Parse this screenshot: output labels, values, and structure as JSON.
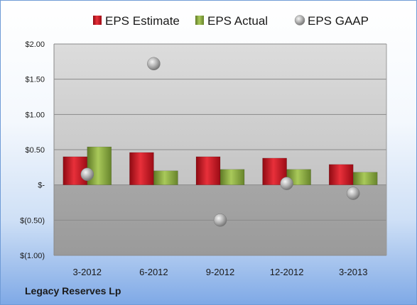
{
  "chart_data": {
    "type": "bar",
    "categories": [
      "3-2012",
      "6-2012",
      "9-2012",
      "12-2012",
      "3-2013"
    ],
    "series": [
      {
        "name": "EPS Estimate",
        "kind": "bar",
        "color": "#c0101e",
        "values": [
          0.4,
          0.46,
          0.4,
          0.38,
          0.29
        ]
      },
      {
        "name": "EPS Actual",
        "kind": "bar",
        "color": "#8aab3e",
        "values": [
          0.54,
          0.2,
          0.22,
          0.22,
          0.18
        ]
      },
      {
        "name": "EPS GAAP",
        "kind": "scatter",
        "color": "#a8a8a8",
        "values": [
          0.15,
          1.72,
          -0.5,
          0.02,
          -0.12
        ]
      }
    ],
    "ylim": [
      -1.0,
      2.0
    ],
    "yticks": [
      2.0,
      1.5,
      1.0,
      0.5,
      0,
      -0.5,
      -1.0
    ],
    "ytick_labels": [
      "$2.00",
      "$1.50",
      "$1.00",
      "$0.50",
      "$-",
      "$(0.50)",
      "$(1.00)"
    ],
    "legend_position": "top",
    "grid": true
  },
  "company_name": "Legacy Reserves Lp"
}
